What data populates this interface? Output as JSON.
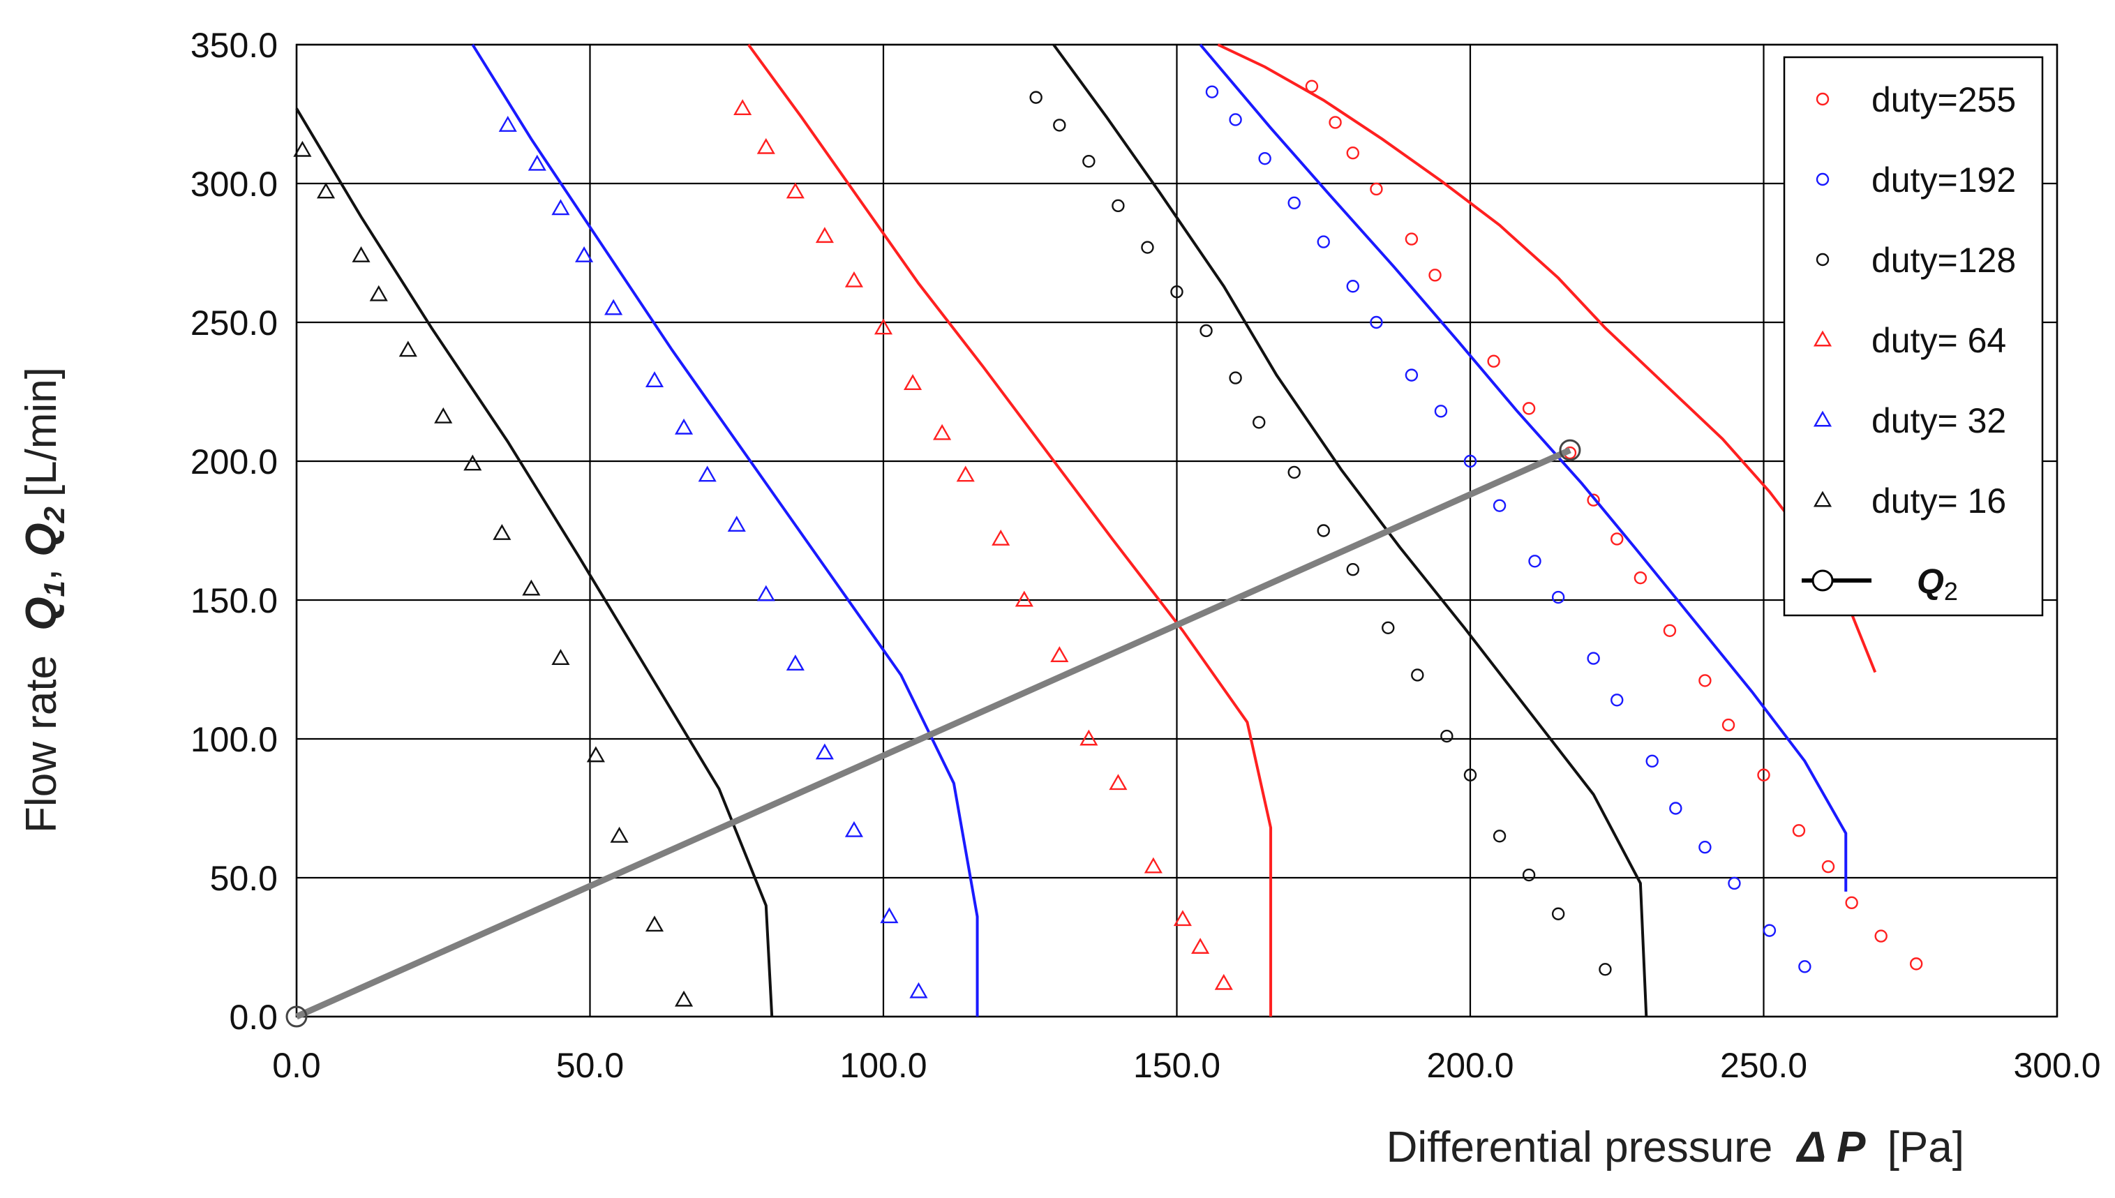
{
  "chart_data": {
    "type": "scatter",
    "title": "",
    "xlabel": {
      "text": "Differential pressure",
      "symbol": "Δ P",
      "unit": "[Pa]"
    },
    "ylabel": {
      "text": "Flow rate",
      "symbol_1": "Q",
      "sub_1": "1",
      "separator": ", ",
      "symbol_2": "Q",
      "sub_2": "2",
      "unit": "[L/min]"
    },
    "xlim": [
      0,
      300
    ],
    "ylim": [
      0,
      350
    ],
    "xticks": [
      0,
      50,
      100,
      150,
      200,
      250,
      300
    ],
    "yticks": [
      0,
      50,
      100,
      150,
      200,
      250,
      300,
      350
    ],
    "xtick_labels": [
      "0.0",
      "50.0",
      "100.0",
      "150.0",
      "200.0",
      "250.0",
      "300.0"
    ],
    "ytick_labels": [
      "0.0",
      "50.0",
      "100.0",
      "150.0",
      "200.0",
      "250.0",
      "300.0",
      "350.0"
    ],
    "grid": true,
    "legend_position": "top-right",
    "series": [
      {
        "name": "duty=255",
        "marker": "circle",
        "color": "#ff2020",
        "points": [
          [
            173,
            335
          ],
          [
            177,
            322
          ],
          [
            180,
            311
          ],
          [
            184,
            298
          ],
          [
            190,
            280
          ],
          [
            194,
            267
          ],
          [
            204,
            236
          ],
          [
            210,
            219
          ],
          [
            217,
            203
          ],
          [
            221,
            186
          ],
          [
            225,
            172
          ],
          [
            229,
            158
          ],
          [
            234,
            139
          ],
          [
            240,
            121
          ],
          [
            244,
            105
          ],
          [
            250,
            87
          ],
          [
            256,
            67
          ],
          [
            261,
            54
          ],
          [
            265,
            41
          ],
          [
            270,
            29
          ],
          [
            276,
            19
          ]
        ],
        "curve": [
          [
            157,
            350
          ],
          [
            165,
            342
          ],
          [
            175,
            330
          ],
          [
            185,
            316
          ],
          [
            195,
            301
          ],
          [
            205,
            285
          ],
          [
            215,
            266
          ],
          [
            223,
            248
          ],
          [
            233,
            228
          ],
          [
            243,
            208
          ],
          [
            251,
            189
          ],
          [
            259,
            167
          ],
          [
            265,
            145
          ],
          [
            269,
            124
          ]
        ]
      },
      {
        "name": "duty=192",
        "marker": "circle",
        "color": "#1a1aff",
        "points": [
          [
            156,
            333
          ],
          [
            160,
            323
          ],
          [
            165,
            309
          ],
          [
            170,
            293
          ],
          [
            175,
            279
          ],
          [
            180,
            263
          ],
          [
            184,
            250
          ],
          [
            190,
            231
          ],
          [
            195,
            218
          ],
          [
            200,
            200
          ],
          [
            205,
            184
          ],
          [
            211,
            164
          ],
          [
            215,
            151
          ],
          [
            221,
            129
          ],
          [
            225,
            114
          ],
          [
            231,
            92
          ],
          [
            235,
            75
          ],
          [
            240,
            61
          ],
          [
            245,
            48
          ],
          [
            251,
            31
          ],
          [
            257,
            18
          ]
        ],
        "curve": [
          [
            154,
            350
          ],
          [
            166,
            320
          ],
          [
            176,
            296
          ],
          [
            187,
            270
          ],
          [
            198,
            243
          ],
          [
            208,
            218
          ],
          [
            219,
            192
          ],
          [
            228,
            169
          ],
          [
            238,
            143
          ],
          [
            248,
            117
          ],
          [
            257,
            92
          ],
          [
            264,
            66
          ],
          [
            264,
            45
          ]
        ]
      },
      {
        "name": "duty=128",
        "marker": "circle",
        "color": "#111111",
        "points": [
          [
            126,
            331
          ],
          [
            130,
            321
          ],
          [
            135,
            308
          ],
          [
            140,
            292
          ],
          [
            145,
            277
          ],
          [
            150,
            261
          ],
          [
            155,
            247
          ],
          [
            160,
            230
          ],
          [
            164,
            214
          ],
          [
            170,
            196
          ],
          [
            175,
            175
          ],
          [
            180,
            161
          ],
          [
            186,
            140
          ],
          [
            191,
            123
          ],
          [
            196,
            101
          ],
          [
            200,
            87
          ],
          [
            205,
            65
          ],
          [
            210,
            51
          ],
          [
            215,
            37
          ],
          [
            223,
            17
          ]
        ],
        "curve": [
          [
            129,
            350
          ],
          [
            138,
            324
          ],
          [
            147,
            297
          ],
          [
            158,
            263
          ],
          [
            167,
            231
          ],
          [
            178,
            197
          ],
          [
            188,
            169
          ],
          [
            199,
            140
          ],
          [
            210,
            110
          ],
          [
            221,
            80
          ],
          [
            229,
            48
          ],
          [
            230,
            0
          ]
        ]
      },
      {
        "name": "duty= 64",
        "marker": "triangle",
        "color": "#ff2020",
        "points": [
          [
            76,
            327
          ],
          [
            80,
            313
          ],
          [
            85,
            297
          ],
          [
            90,
            281
          ],
          [
            95,
            265
          ],
          [
            100,
            248
          ],
          [
            105,
            228
          ],
          [
            110,
            210
          ],
          [
            114,
            195
          ],
          [
            120,
            172
          ],
          [
            124,
            150
          ],
          [
            130,
            130
          ],
          [
            135,
            100
          ],
          [
            140,
            84
          ],
          [
            146,
            54
          ],
          [
            151,
            35
          ],
          [
            154,
            25
          ],
          [
            158,
            12
          ]
        ],
        "curve": [
          [
            77,
            350
          ],
          [
            86,
            324
          ],
          [
            96,
            294
          ],
          [
            106,
            264
          ],
          [
            117,
            234
          ],
          [
            128,
            203
          ],
          [
            139,
            172
          ],
          [
            151,
            139
          ],
          [
            162,
            106
          ],
          [
            166,
            68
          ],
          [
            166,
            0
          ]
        ]
      },
      {
        "name": "duty= 32",
        "marker": "triangle",
        "color": "#1a1aff",
        "points": [
          [
            36,
            321
          ],
          [
            41,
            307
          ],
          [
            45,
            291
          ],
          [
            49,
            274
          ],
          [
            54,
            255
          ],
          [
            61,
            229
          ],
          [
            66,
            212
          ],
          [
            70,
            195
          ],
          [
            75,
            177
          ],
          [
            80,
            152
          ],
          [
            85,
            127
          ],
          [
            90,
            95
          ],
          [
            95,
            67
          ],
          [
            101,
            36
          ],
          [
            106,
            9
          ]
        ],
        "curve": [
          [
            30,
            350
          ],
          [
            40,
            316
          ],
          [
            52,
            278
          ],
          [
            64,
            240
          ],
          [
            77,
            201
          ],
          [
            90,
            162
          ],
          [
            103,
            123
          ],
          [
            112,
            84
          ],
          [
            116,
            36
          ],
          [
            116,
            0
          ]
        ]
      },
      {
        "name": "duty= 16",
        "marker": "triangle",
        "color": "#111111",
        "points": [
          [
            1,
            312
          ],
          [
            5,
            297
          ],
          [
            11,
            274
          ],
          [
            14,
            260
          ],
          [
            19,
            240
          ],
          [
            25,
            216
          ],
          [
            30,
            199
          ],
          [
            35,
            174
          ],
          [
            40,
            154
          ],
          [
            45,
            129
          ],
          [
            51,
            94
          ],
          [
            55,
            65
          ],
          [
            61,
            33
          ],
          [
            66,
            6
          ]
        ],
        "curve": [
          [
            0,
            327
          ],
          [
            11,
            288
          ],
          [
            23,
            248
          ],
          [
            36,
            207
          ],
          [
            48,
            166
          ],
          [
            60,
            124
          ],
          [
            72,
            82
          ],
          [
            80,
            40
          ],
          [
            81,
            0
          ]
        ]
      },
      {
        "name": "Q2",
        "name_symbol": "Q",
        "name_sub": "2",
        "marker": "open-circle-endpoints",
        "color": "#7f7f7f",
        "line": [
          [
            0,
            0
          ],
          [
            217,
            204
          ]
        ]
      }
    ]
  }
}
